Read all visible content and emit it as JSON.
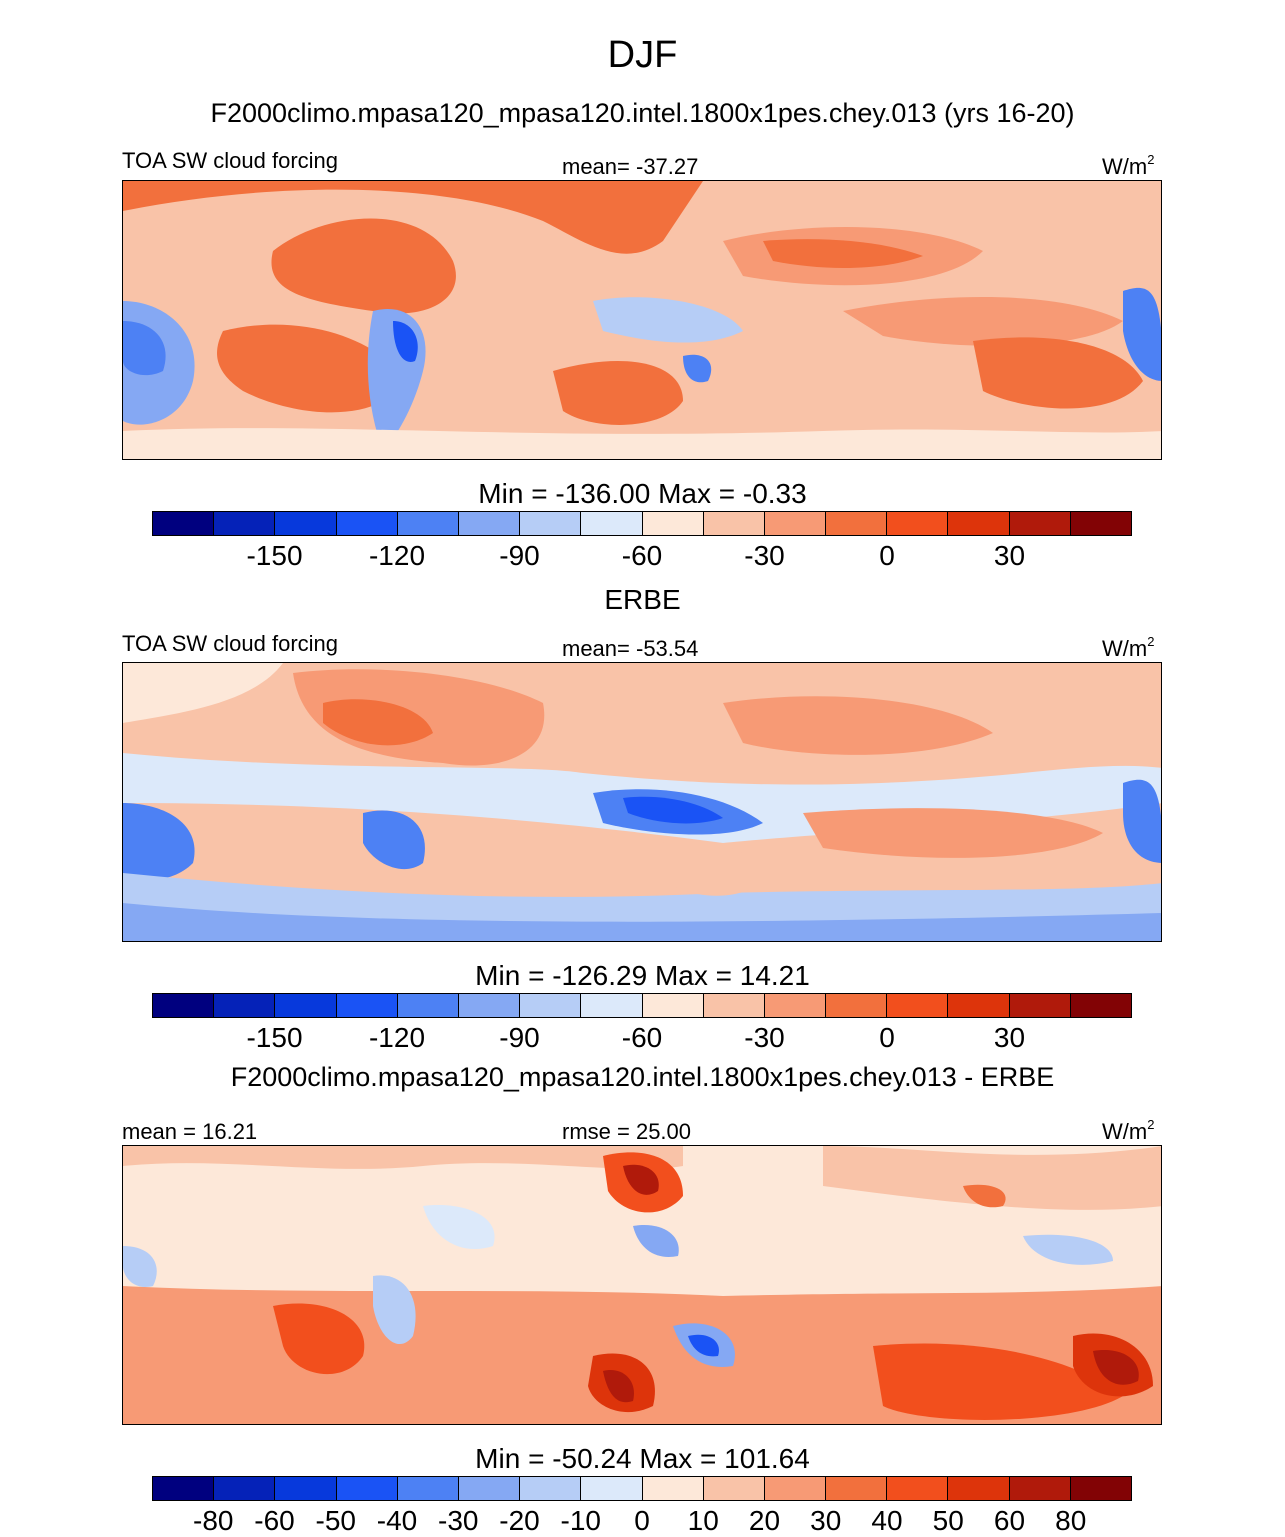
{
  "figure": {
    "season": "DJF",
    "case_title": "F2000climo.mpasa120_mpasa120.intel.1800x1pes.chey.013 (yrs 16-20)",
    "obs_title": "ERBE",
    "diff_title": "F2000climo.mpasa120_mpasa120.intel.1800x1pes.chey.013 - ERBE"
  },
  "palette": [
    "#00007f",
    "#0522b8",
    "#0739dc",
    "#1a53f5",
    "#4d81f4",
    "#85a8f3",
    "#b6cdf6",
    "#dce9fa",
    "#fde8d9",
    "#f9c3a8",
    "#f79a75",
    "#f2703d",
    "#f24f1d",
    "#dd340b",
    "#b01a0b",
    "#820305"
  ],
  "chart_data": [
    {
      "type": "heatmap",
      "id": "model",
      "left_label": "TOA SW cloud forcing",
      "center_label": "mean= -37.27",
      "unit_base": "W/m",
      "unit_exp": "2",
      "minmax": "Min = -136.00 Max =  -0.33",
      "colorbar_ticks": [
        "-150",
        "-120",
        "-90",
        "-60",
        "-30",
        "0",
        "30"
      ],
      "levels": [
        -165,
        -150,
        -135,
        -120,
        -105,
        -90,
        -75,
        -60,
        -45,
        -30,
        -15,
        0,
        15,
        30,
        45
      ],
      "mean": -37.27,
      "min": -136.0,
      "max": -0.33
    },
    {
      "type": "heatmap",
      "id": "obs",
      "left_label": "TOA SW cloud forcing",
      "center_label": "mean= -53.54",
      "unit_base": "W/m",
      "unit_exp": "2",
      "minmax": "Min = -126.29 Max =  14.21",
      "colorbar_ticks": [
        "-150",
        "-120",
        "-90",
        "-60",
        "-30",
        "0",
        "30"
      ],
      "levels": [
        -165,
        -150,
        -135,
        -120,
        -105,
        -90,
        -75,
        -60,
        -45,
        -30,
        -15,
        0,
        15,
        30,
        45
      ],
      "mean": -53.54,
      "min": -126.29,
      "max": 14.21
    },
    {
      "type": "heatmap",
      "id": "diff",
      "left_label": "mean =  16.21",
      "center_label": "rmse =  25.00",
      "unit_base": "W/m",
      "unit_exp": "2",
      "minmax": "Min = -50.24 Max = 101.64",
      "colorbar_ticks": [
        "-80",
        "-60",
        "-50",
        "-40",
        "-30",
        "-20",
        "-10",
        "0",
        "10",
        "20",
        "30",
        "40",
        "50",
        "60",
        "80"
      ],
      "levels": [
        -80,
        -60,
        -50,
        -40,
        -30,
        -20,
        -10,
        0,
        10,
        20,
        30,
        40,
        50,
        60,
        80
      ],
      "mean": 16.21,
      "rmse": 25.0,
      "min": -50.24,
      "max": 101.64
    }
  ]
}
